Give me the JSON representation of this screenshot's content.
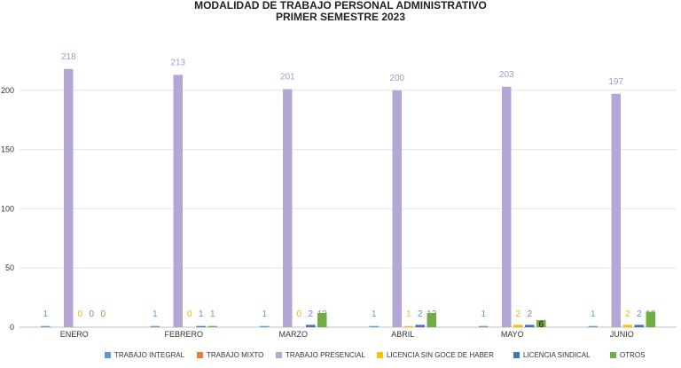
{
  "chart_data": {
    "type": "bar",
    "title": "MODALIDAD DE TRABAJO PERSONAL ADMINISTRATIVO",
    "subtitle": "PRIMER SEMESTRE 2023",
    "xlabel": "",
    "ylabel": "",
    "ylim": [
      0,
      250
    ],
    "yticks": [
      0,
      50,
      100,
      150,
      200
    ],
    "grid": true,
    "legend_position": "bottom",
    "categories": [
      "ENERO",
      "FEBRERO",
      "MARZO",
      "ABRIL",
      "MAYO",
      "JUNIO"
    ],
    "series": [
      {
        "name": "TRABAJO INTEGRAL",
        "color": "#5b9bd5",
        "label_color": "#5b9bd5",
        "values": [
          1,
          1,
          1,
          1,
          1,
          1
        ],
        "labels": [
          "1",
          "1",
          "1",
          "1",
          "1",
          "1"
        ]
      },
      {
        "name": "TRABAJO MIXTO",
        "color": "#ed7d31",
        "label_color": "#ed7d31",
        "values": [
          0,
          0,
          0,
          0,
          0,
          0
        ],
        "labels": [
          "",
          "",
          "",
          "",
          "",
          ""
        ]
      },
      {
        "name": "TRABAJO PRESENCIAL",
        "color": "#b4a7d6",
        "label_color": "#a597d0",
        "values": [
          218,
          213,
          201,
          200,
          203,
          197
        ],
        "labels": [
          "218",
          "213",
          "201",
          "200",
          "203",
          "197"
        ]
      },
      {
        "name": "LICENCIA SIN GOCE DE HABER",
        "color": "#ffc000",
        "label_color": "#f2b800",
        "values": [
          0,
          0,
          0,
          1,
          2,
          2
        ],
        "labels": [
          "0",
          "0",
          "0",
          "1",
          "2",
          "2"
        ]
      },
      {
        "name": "LICENCIA SINDICAL",
        "color": "#4472c4",
        "label_color": "#5b8fd0",
        "values": [
          0,
          1,
          2,
          2,
          2,
          2
        ],
        "labels": [
          "0",
          "1",
          "2",
          "2",
          "2",
          "2"
        ]
      },
      {
        "name": "OTROS",
        "color": "#70ad47",
        "label_color": "#70ad47",
        "values": [
          0,
          1,
          12,
          12,
          6,
          13
        ],
        "labels": [
          "0",
          "1",
          "12",
          "12",
          "6",
          "13"
        ]
      }
    ]
  }
}
